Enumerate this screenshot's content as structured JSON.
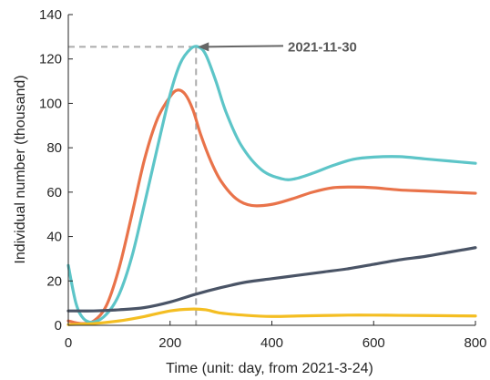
{
  "chart_data": {
    "type": "line",
    "xlabel": "Time (unit: day, from 2021-3-24)",
    "ylabel": "Individual number (thousand)",
    "xlim": [
      0,
      800
    ],
    "ylim": [
      0,
      140
    ],
    "xticks": [
      0,
      200,
      400,
      600,
      800
    ],
    "yticks": [
      0,
      20,
      40,
      60,
      80,
      100,
      120,
      140
    ],
    "grid": false,
    "legend": "none",
    "series": [
      {
        "color": "#E9734A",
        "x": [
          0,
          25,
          50,
          75,
          100,
          125,
          150,
          175,
          200,
          215,
          230,
          245,
          260,
          280,
          300,
          330,
          360,
          400,
          440,
          480,
          520,
          560,
          600,
          650,
          700,
          750,
          800
        ],
        "y": [
          2,
          0.8,
          2,
          9,
          26,
          50,
          75,
          93,
          103,
          106,
          104,
          97,
          86,
          74,
          65,
          57,
          54,
          54.5,
          57,
          60,
          62,
          62.3,
          62,
          61,
          60.5,
          60,
          59.5
        ]
      },
      {
        "color": "#5DC5C8",
        "x": [
          0,
          15,
          30,
          50,
          75,
          100,
          125,
          150,
          175,
          200,
          220,
          240,
          255,
          270,
          290,
          310,
          340,
          380,
          420,
          445,
          480,
          520,
          560,
          600,
          650,
          700,
          750,
          800
        ],
        "y": [
          27,
          10,
          3,
          1.5,
          5,
          14,
          31,
          55,
          80,
          104,
          118,
          124.5,
          125.5,
          122,
          110,
          96,
          81,
          70,
          66,
          66,
          68.5,
          72,
          74.8,
          75.8,
          76,
          75,
          74,
          73
        ]
      },
      {
        "color": "#4A5466",
        "x": [
          0,
          50,
          100,
          150,
          200,
          250,
          300,
          350,
          400,
          450,
          500,
          550,
          600,
          650,
          700,
          750,
          800
        ],
        "y": [
          6.5,
          6.5,
          7,
          8,
          10.5,
          14,
          17,
          19.5,
          21,
          22.5,
          24,
          25.5,
          27.5,
          29.5,
          31,
          33,
          35
        ]
      },
      {
        "color": "#F4BE22",
        "x": [
          0,
          50,
          100,
          150,
          200,
          240,
          270,
          300,
          350,
          400,
          450,
          500,
          550,
          600,
          650,
          700,
          750,
          800
        ],
        "y": [
          0.3,
          0.8,
          2,
          4,
          6.5,
          7.3,
          7,
          5.5,
          4.5,
          4,
          4.2,
          4.4,
          4.6,
          4.6,
          4.5,
          4.4,
          4.3,
          4.2
        ]
      }
    ],
    "annotation": {
      "text": "2021-11-30",
      "x": 251,
      "y": 125.5,
      "text_x": 340,
      "guide_color": "#ABABAB",
      "arrow_color": "#666666"
    }
  }
}
